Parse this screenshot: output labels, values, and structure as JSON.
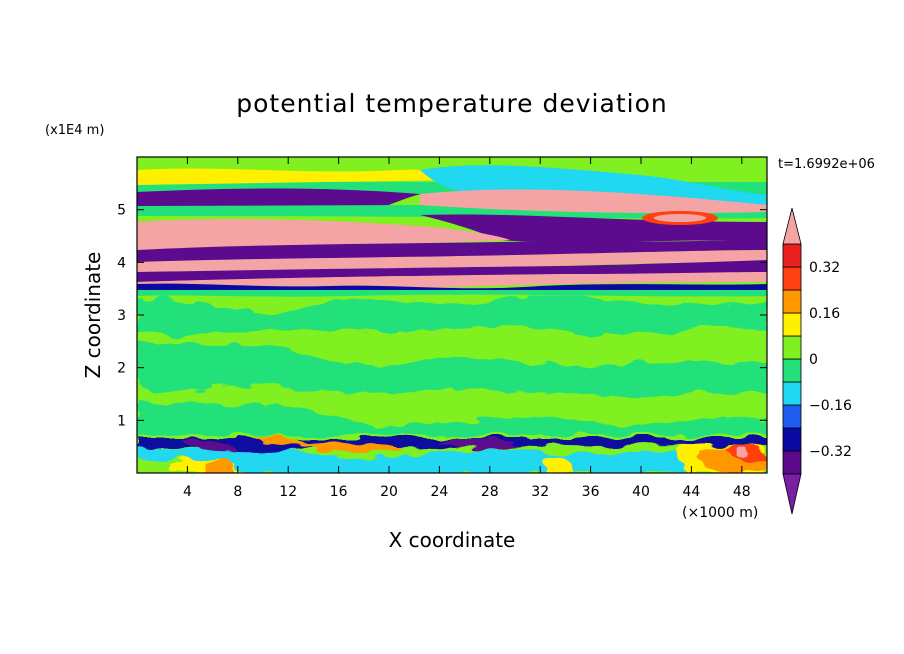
{
  "chart_data": {
    "type": "heatmap",
    "title": "potential temperature deviation",
    "time_label": "t=1.6992e+06",
    "xlabel": "X coordinate",
    "ylabel": "Z coordinate",
    "x_unit": "(×1000 m)",
    "y_unit": "(x1E4 m)",
    "xlim": [
      0,
      50
    ],
    "ylim": [
      0,
      6
    ],
    "x_ticks": [
      4,
      8,
      12,
      16,
      20,
      24,
      28,
      32,
      36,
      40,
      44,
      48
    ],
    "y_ticks": [
      1,
      2,
      3,
      4,
      5
    ],
    "colorbar": {
      "levels": [
        -0.4,
        -0.32,
        -0.24,
        -0.16,
        -0.08,
        0,
        0.08,
        0.16,
        0.24,
        0.32,
        0.4
      ],
      "tick_labels": [
        "0.32",
        "0.16",
        "0",
        "−0.16",
        "−0.32"
      ],
      "tick_values": [
        0.32,
        0.16,
        0,
        -0.16,
        -0.32
      ],
      "colors": [
        "#7b1fa2",
        "#5c0a8e",
        "#0a0aa0",
        "#1e5cf0",
        "#20d8f0",
        "#22e07a",
        "#80f020",
        "#fff000",
        "#ff9800",
        "#ff4010",
        "#e82020",
        "#f4a4a4"
      ]
    },
    "bands": [
      {
        "z": [
          0,
          0.1
        ],
        "value": 0.1
      },
      {
        "z": [
          0.1,
          0.6
        ],
        "value": 0.02
      },
      {
        "z": [
          0.6,
          0.65
        ],
        "value": -0.2
      },
      {
        "z": [
          0.65,
          3.5
        ],
        "value": 0.03
      },
      {
        "z": [
          3.5,
          3.7
        ],
        "value": -0.4
      },
      {
        "z": [
          3.7,
          3.8
        ],
        "value": 0.45
      },
      {
        "z": [
          3.8,
          4.0
        ],
        "value": -0.45
      },
      {
        "z": [
          4.0,
          4.2
        ],
        "value": 0.45
      },
      {
        "z": [
          4.2,
          4.4
        ],
        "value": -0.45
      },
      {
        "z": [
          4.4,
          4.9
        ],
        "value": 0.45
      },
      {
        "z": [
          4.9,
          5.1
        ],
        "value": -0.45
      },
      {
        "z": [
          5.1,
          5.3
        ],
        "value": 0.45
      },
      {
        "z": [
          5.3,
          5.5
        ],
        "value": 0.1
      },
      {
        "z": [
          5.5,
          6.0
        ],
        "value": 0.03
      }
    ]
  }
}
